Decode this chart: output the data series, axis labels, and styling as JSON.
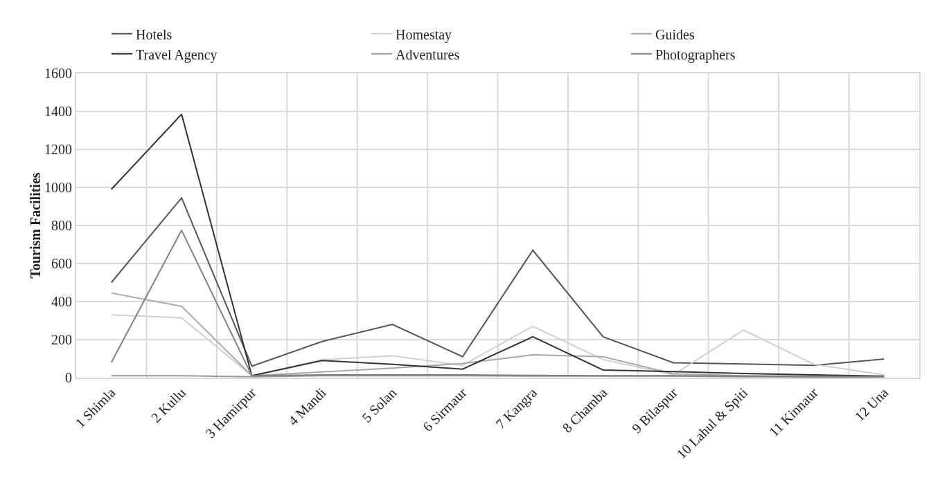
{
  "chart_data": {
    "type": "line",
    "ylabel": "Tourism Facilities",
    "categories": [
      "1 Shimla",
      "2 Kullu",
      "3 Hamirpur",
      "4 Mandi",
      "5 Solan",
      "6 Sirmaur",
      "7 Kangra",
      "8 Chamba",
      "9 Bilaspur",
      "10 Lahul & Spiti",
      "11 Kinnaur",
      "12 Una"
    ],
    "series": [
      {
        "name": "Hotels",
        "color": "#555555",
        "values": [
          500,
          945,
          60,
          190,
          280,
          110,
          670,
          215,
          78,
          72,
          65,
          98
        ]
      },
      {
        "name": "Homestay",
        "color": "#d0d0d0",
        "values": [
          330,
          315,
          10,
          95,
          115,
          65,
          270,
          95,
          15,
          250,
          70,
          15
        ]
      },
      {
        "name": "Guides",
        "color": "#a8a8a8",
        "values": [
          445,
          375,
          10,
          30,
          50,
          75,
          120,
          110,
          20,
          10,
          8,
          5
        ]
      },
      {
        "name": "Travel Agency",
        "color": "#333333",
        "values": [
          990,
          1385,
          10,
          90,
          70,
          45,
          215,
          40,
          32,
          22,
          15,
          8
        ]
      },
      {
        "name": "Adventures",
        "color": "#9a9a9a",
        "values": [
          10,
          10,
          5,
          10,
          10,
          10,
          8,
          8,
          8,
          5,
          5,
          5
        ]
      },
      {
        "name": "Photographers",
        "color": "#808080",
        "values": [
          80,
          775,
          10,
          15,
          15,
          15,
          12,
          10,
          10,
          8,
          5,
          5
        ]
      }
    ],
    "ylim": [
      0,
      1600
    ],
    "yticks": [
      0,
      200,
      400,
      600,
      800,
      1000,
      1200,
      1400,
      1600
    ],
    "grid": true,
    "legend": "top",
    "marker": "none",
    "line_style": "solid"
  }
}
